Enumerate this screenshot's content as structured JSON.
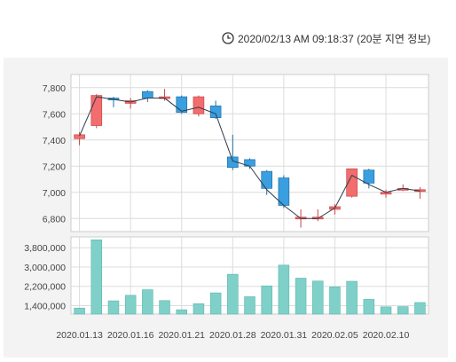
{
  "header": {
    "icon": "clock-icon",
    "timestamp": "2020/02/13 AM 09:18:37 (20분 지연 정보)"
  },
  "colors": {
    "up": "#f26d6d",
    "down": "#3a9fe0",
    "ma_line": "#2f3b4c",
    "volume": "#7fd0c8",
    "panel_background": "#f3f3f3",
    "plot_background": "#ffffff",
    "grid": "#dcdcdc"
  },
  "chart_data": [
    {
      "type": "candlestick",
      "y_ticks": [
        "7,800",
        "7,600",
        "7,400",
        "7,200",
        "7,000",
        "6,800"
      ],
      "y_tick_values": [
        7800,
        7600,
        7400,
        7200,
        7000,
        6800
      ],
      "ylim": [
        6700,
        7900
      ],
      "grid": true,
      "line": [
        7430,
        7730,
        7710,
        7690,
        7720,
        7720,
        7620,
        7650,
        7600,
        7240,
        7200,
        7020,
        6900,
        6800,
        6800,
        6880,
        7130,
        7060,
        7000,
        7030,
        7010
      ],
      "candles": [
        {
          "open": 7410,
          "high": 7460,
          "low": 7360,
          "close": 7440
        },
        {
          "open": 7510,
          "high": 7750,
          "low": 7490,
          "close": 7740
        },
        {
          "open": 7720,
          "high": 7730,
          "low": 7650,
          "close": 7710
        },
        {
          "open": 7680,
          "high": 7720,
          "low": 7640,
          "close": 7700
        },
        {
          "open": 7770,
          "high": 7780,
          "low": 7690,
          "close": 7720
        },
        {
          "open": 7720,
          "high": 7790,
          "low": 7700,
          "close": 7730
        },
        {
          "open": 7730,
          "high": 7740,
          "low": 7600,
          "close": 7610
        },
        {
          "open": 7600,
          "high": 7740,
          "low": 7580,
          "close": 7730
        },
        {
          "open": 7660,
          "high": 7700,
          "low": 7560,
          "close": 7570
        },
        {
          "open": 7270,
          "high": 7440,
          "low": 7170,
          "close": 7190
        },
        {
          "open": 7250,
          "high": 7260,
          "low": 7180,
          "close": 7200
        },
        {
          "open": 7160,
          "high": 7170,
          "low": 6980,
          "close": 7030
        },
        {
          "open": 7110,
          "high": 7130,
          "low": 6880,
          "close": 6900
        },
        {
          "open": 6800,
          "high": 6870,
          "low": 6730,
          "close": 6810
        },
        {
          "open": 6800,
          "high": 6870,
          "low": 6780,
          "close": 6810
        },
        {
          "open": 6870,
          "high": 6910,
          "low": 6830,
          "close": 6890
        },
        {
          "open": 6970,
          "high": 7180,
          "low": 6960,
          "close": 7180
        },
        {
          "open": 7170,
          "high": 7180,
          "low": 7030,
          "close": 7070
        },
        {
          "open": 7000,
          "high": 7020,
          "low": 6960,
          "close": 7000
        },
        {
          "open": 7030,
          "high": 7060,
          "low": 7010,
          "close": 7030
        },
        {
          "open": 7010,
          "high": 7040,
          "low": 6950,
          "close": 7020
        }
      ]
    },
    {
      "type": "bar",
      "y_ticks": [
        "3,800,000",
        "3,000,000",
        "2,200,000",
        "1,400,000"
      ],
      "y_tick_values": [
        3800000,
        3000000,
        2200000,
        1400000
      ],
      "ylim": [
        1050000,
        4250000
      ],
      "grid": true,
      "values": [
        1300000,
        4130000,
        1600000,
        1830000,
        2060000,
        1610000,
        1230000,
        1480000,
        1930000,
        2700000,
        1770000,
        2220000,
        3080000,
        2540000,
        2420000,
        2180000,
        2410000,
        1660000,
        1350000,
        1360000,
        1530000
      ],
      "x_tick_labels": [
        "2020.01.13",
        "2020.01.16",
        "2020.01.21",
        "2020.01.28",
        "2020.01.31",
        "2020.02.05",
        "2020.02.10"
      ],
      "x_tick_index": [
        0,
        3,
        6,
        9,
        12,
        15,
        18
      ]
    }
  ]
}
